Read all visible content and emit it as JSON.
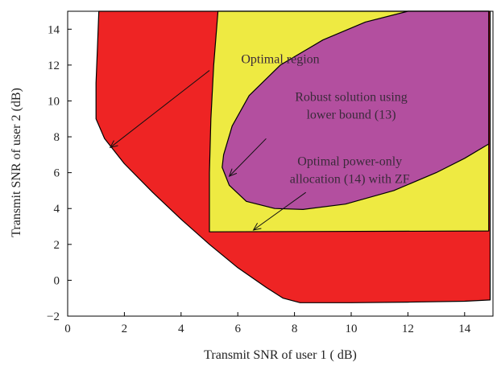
{
  "chart_data": {
    "type": "area",
    "xlabel": "Transmit SNR of user 1 ( dB)",
    "ylabel": "Transmit SNR of user 2 (dB)",
    "xlim": [
      0,
      15
    ],
    "ylim": [
      -2,
      15
    ],
    "xticks": [
      "0",
      "2",
      "4",
      "6",
      "8",
      "10",
      "12",
      "14"
    ],
    "yticks": [
      "−2",
      "0",
      "2",
      "4",
      "6",
      "8",
      "10",
      "12",
      "14"
    ],
    "xtick_values": [
      0,
      2,
      4,
      6,
      8,
      10,
      12,
      14
    ],
    "ytick_values": [
      -2,
      0,
      2,
      4,
      6,
      8,
      10,
      12,
      14
    ],
    "grid": false,
    "regions": [
      {
        "label": "Optimal region",
        "color": "#ee2424",
        "boundary": [
          [
            1.1,
            15
          ],
          [
            1.05,
            13
          ],
          [
            1.0,
            11
          ],
          [
            1.0,
            9.0
          ],
          [
            1.3,
            7.9
          ],
          [
            2.0,
            6.5
          ],
          [
            3.0,
            4.9
          ],
          [
            4.0,
            3.4
          ],
          [
            5.0,
            2.0
          ],
          [
            6.0,
            0.7
          ],
          [
            7.0,
            -0.4
          ],
          [
            7.6,
            -1.0
          ],
          [
            8.2,
            -1.25
          ],
          [
            10.0,
            -1.25
          ],
          [
            12.0,
            -1.22
          ],
          [
            14.0,
            -1.17
          ],
          [
            14.9,
            -1.1
          ],
          [
            14.9,
            15
          ]
        ]
      },
      {
        "label": "Optimal power-only allocation (14) with ZF",
        "color": "#eeea42",
        "boundary": [
          [
            5.0,
            2.7
          ],
          [
            14.85,
            2.75
          ],
          [
            14.85,
            15
          ],
          [
            9.1,
            15
          ],
          [
            5.3,
            15
          ],
          [
            5.15,
            12
          ],
          [
            5.05,
            9
          ],
          [
            5.0,
            6
          ]
        ]
      },
      {
        "label": "Robust solution using lower bound (13)",
        "color": "#b34f9f",
        "boundary": [
          [
            5.5,
            7.0
          ],
          [
            5.45,
            6.3
          ],
          [
            5.7,
            5.3
          ],
          [
            6.3,
            4.4
          ],
          [
            7.3,
            4.0
          ],
          [
            8.3,
            3.95
          ],
          [
            9.8,
            4.25
          ],
          [
            11.5,
            5.0
          ],
          [
            13.0,
            6.0
          ],
          [
            14.0,
            6.8
          ],
          [
            14.85,
            7.6
          ],
          [
            14.85,
            15
          ],
          [
            12.0,
            15
          ],
          [
            10.5,
            14.4
          ],
          [
            9.0,
            13.4
          ],
          [
            7.5,
            12.0
          ],
          [
            6.4,
            10.3
          ],
          [
            5.8,
            8.6
          ]
        ]
      }
    ],
    "annotations": [
      {
        "lines": [
          "Optimal region"
        ],
        "text_x": 7.5,
        "text_y": 12.1,
        "arrow_from": [
          5.0,
          11.7
        ],
        "arrow_to": [
          1.5,
          7.4
        ]
      },
      {
        "lines": [
          "Robust solution using",
          "lower bound (13)"
        ],
        "text_x": 10.0,
        "text_y": 10.0,
        "arrow_from": [
          7.0,
          7.9
        ],
        "arrow_to": [
          5.7,
          5.8
        ]
      },
      {
        "lines": [
          "Optimal power-only",
          "allocation (14) with ZF"
        ],
        "text_x": 9.95,
        "text_y": 6.4,
        "arrow_from": [
          8.4,
          4.9
        ],
        "arrow_to": [
          6.55,
          2.8
        ]
      }
    ]
  }
}
